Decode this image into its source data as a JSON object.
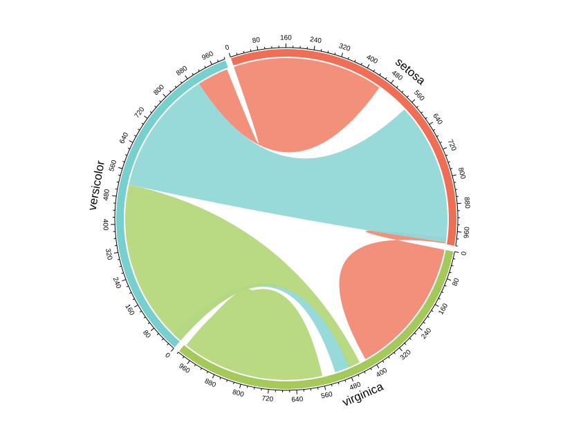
{
  "chart_data": {
    "type": "chord",
    "sectors": [
      {
        "name": "setosa",
        "color": "#EF6F56",
        "fill": "#F28A74",
        "max": 1000
      },
      {
        "name": "virginica",
        "color": "#A3C95A",
        "fill": "#B5D77C",
        "max": 1000
      },
      {
        "name": "versicolor",
        "color": "#77CFCE",
        "fill": "#92D7D7",
        "max": 1000
      }
    ],
    "major_ticks": [
      0,
      80,
      160,
      240,
      320,
      400,
      480,
      560,
      640,
      720,
      800,
      880,
      960
    ],
    "minor_tick_step": 20,
    "links": [
      {
        "name": "setosa-virginica",
        "color_from": "setosa",
        "from": "setosa",
        "from_range": [
          998,
          980
        ],
        "to": "virginica",
        "to_range": [
          0,
          420
        ]
      },
      {
        "name": "setosa-versicolor",
        "color_from": "setosa",
        "from": "setosa",
        "from_range": [
          0,
          460
        ],
        "to": "versicolor",
        "to_range": [
          900,
          995
        ]
      },
      {
        "name": "versicolor-setosa",
        "color_from": "versicolor",
        "from": "versicolor",
        "from_range": [
          520,
          900
        ],
        "to": "setosa",
        "to_range": [
          560,
          995
        ]
      },
      {
        "name": "versicolor-virginica",
        "color_from": "versicolor",
        "from": "versicolor",
        "from_range": [
          0,
          30
        ],
        "to": "virginica",
        "to_range": [
          470,
          520
        ]
      },
      {
        "name": "virginica-versicolor",
        "color_from": "virginica",
        "from": "virginica",
        "from_range": [
          440,
          475
        ],
        "to": "versicolor",
        "to_range": [
          0,
          520
        ]
      },
      {
        "name": "virginica-self",
        "color_from": "virginica",
        "from": "virginica",
        "from_range": [
          560,
          990
        ],
        "to": "virginica",
        "to_range": [
          800,
          995
        ]
      }
    ]
  }
}
